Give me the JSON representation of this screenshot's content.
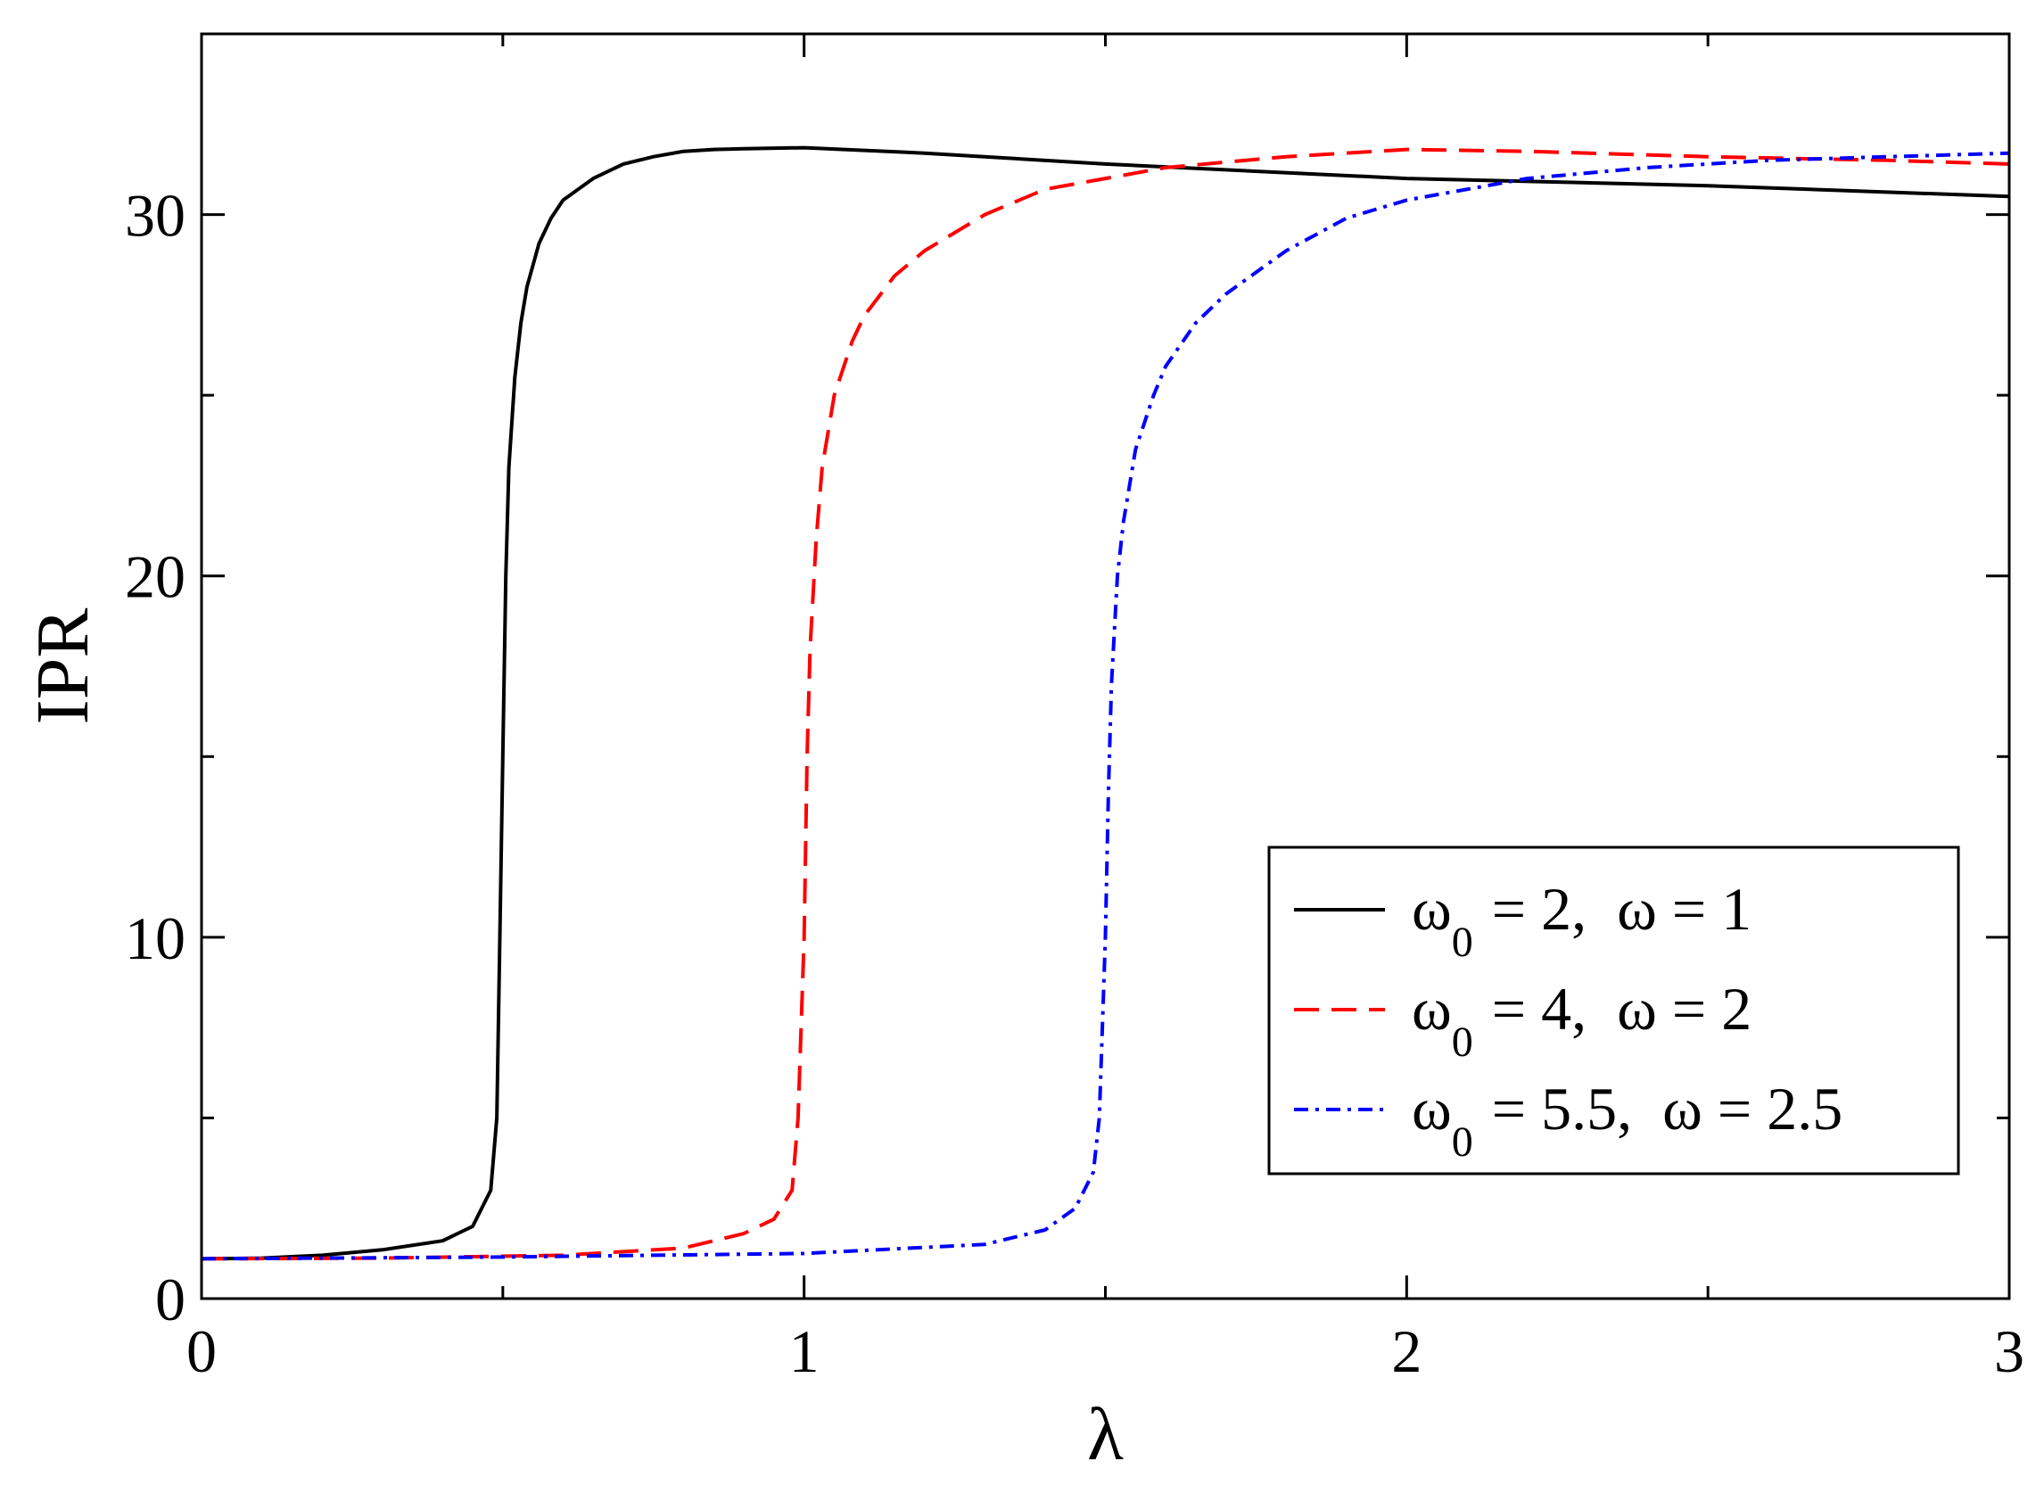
{
  "chart_data": {
    "type": "line",
    "title": "",
    "xlabel": "λ",
    "ylabel": "IPR",
    "xlim": [
      0,
      3
    ],
    "ylim": [
      0,
      35
    ],
    "grid": false,
    "legend_position": "bottom-right",
    "xticks": [
      {
        "value": 0,
        "label": "0"
      },
      {
        "value": 1,
        "label": "1"
      },
      {
        "value": 2,
        "label": "2"
      },
      {
        "value": 3,
        "label": "3"
      }
    ],
    "yticks": [
      {
        "value": 0,
        "label": "0"
      },
      {
        "value": 10,
        "label": "10"
      },
      {
        "value": 20,
        "label": "20"
      },
      {
        "value": 30,
        "label": "30"
      }
    ],
    "series": [
      {
        "name": "ω0 = 2,  ω = 1",
        "legend_main": "ω",
        "legend_sub": "0",
        "legend_rest": " = 2,  ω = 1",
        "color": "#000000",
        "style": "solid",
        "x": [
          0,
          0.1,
          0.2,
          0.3,
          0.4,
          0.45,
          0.48,
          0.49,
          0.495,
          0.5,
          0.505,
          0.51,
          0.52,
          0.53,
          0.54,
          0.56,
          0.58,
          0.6,
          0.65,
          0.7,
          0.75,
          0.8,
          0.85,
          0.9,
          1.0,
          1.2,
          1.5,
          2.0,
          2.5,
          3.0
        ],
        "y": [
          1.1,
          1.12,
          1.2,
          1.35,
          1.6,
          2.0,
          3.0,
          5.0,
          10.0,
          15.0,
          20.0,
          23.0,
          25.5,
          27.0,
          28.0,
          29.2,
          29.9,
          30.4,
          31.0,
          31.4,
          31.6,
          31.75,
          31.8,
          31.82,
          31.85,
          31.7,
          31.4,
          31.0,
          30.8,
          30.5
        ]
      },
      {
        "name": "ω0 = 4,  ω = 2",
        "legend_main": "ω",
        "legend_sub": "0",
        "legend_rest": " = 4,  ω = 2",
        "color": "#ff0000",
        "style": "dashed",
        "x": [
          0,
          0.3,
          0.6,
          0.8,
          0.9,
          0.95,
          0.98,
          0.99,
          1.0,
          1.005,
          1.01,
          1.02,
          1.03,
          1.05,
          1.08,
          1.1,
          1.15,
          1.2,
          1.3,
          1.4,
          1.5,
          1.6,
          1.8,
          2.0,
          2.2,
          2.5,
          2.8,
          3.0
        ],
        "y": [
          1.1,
          1.12,
          1.2,
          1.4,
          1.8,
          2.2,
          3.0,
          5.0,
          10.0,
          15.0,
          18.0,
          21.0,
          23.0,
          25.0,
          26.5,
          27.2,
          28.3,
          29.0,
          30.0,
          30.7,
          31.0,
          31.3,
          31.6,
          31.8,
          31.75,
          31.6,
          31.5,
          31.4
        ]
      },
      {
        "name": "ω0 = 5.5,  ω = 2.5",
        "legend_main": "ω",
        "legend_sub": "0",
        "legend_rest": " = 5.5,  ω = 2.5",
        "color": "#0000ff",
        "style": "dash-dot",
        "x": [
          0,
          0.5,
          1.0,
          1.3,
          1.4,
          1.45,
          1.48,
          1.49,
          1.5,
          1.505,
          1.51,
          1.52,
          1.53,
          1.55,
          1.58,
          1.6,
          1.65,
          1.7,
          1.8,
          1.9,
          2.0,
          2.2,
          2.4,
          2.6,
          2.8,
          3.0
        ],
        "y": [
          1.1,
          1.15,
          1.25,
          1.5,
          1.9,
          2.5,
          3.5,
          5.0,
          10.0,
          14.0,
          17.0,
          20.0,
          21.5,
          23.5,
          25.0,
          25.8,
          27.0,
          27.8,
          29.0,
          29.9,
          30.4,
          31.0,
          31.3,
          31.5,
          31.6,
          31.7
        ]
      }
    ]
  }
}
